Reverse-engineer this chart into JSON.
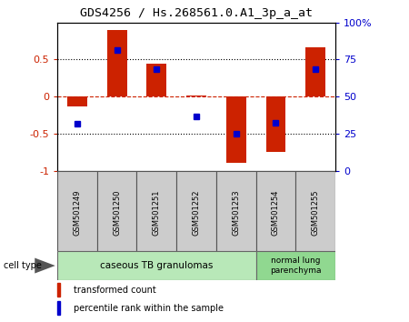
{
  "title": "GDS4256 / Hs.268561.0.A1_3p_a_at",
  "samples": [
    "GSM501249",
    "GSM501250",
    "GSM501251",
    "GSM501252",
    "GSM501253",
    "GSM501254",
    "GSM501255"
  ],
  "red_bars": [
    -0.13,
    0.9,
    0.45,
    0.02,
    -0.9,
    -0.75,
    0.67
  ],
  "blue_dots": [
    -0.37,
    0.63,
    0.37,
    -0.27,
    -0.5,
    -0.35,
    0.37
  ],
  "ylim": [
    -1.0,
    1.0
  ],
  "yticks_left": [
    -1,
    -0.5,
    0,
    0.5
  ],
  "yticks_right": [
    0,
    25,
    50,
    75,
    100
  ],
  "hline_y": 0.0,
  "dotted_lines": [
    -0.5,
    0.5
  ],
  "bar_color": "#cc2200",
  "dot_color": "#0000cc",
  "group1_count": 5,
  "group1_label": "caseous TB granulomas",
  "group2_label": "normal lung\nparenchyma",
  "group1_color": "#b8e8b8",
  "group2_color": "#90d890",
  "cell_type_label": "cell type",
  "legend_red": "transformed count",
  "legend_blue": "percentile rank within the sample",
  "bar_width": 0.5,
  "background": "#ffffff"
}
